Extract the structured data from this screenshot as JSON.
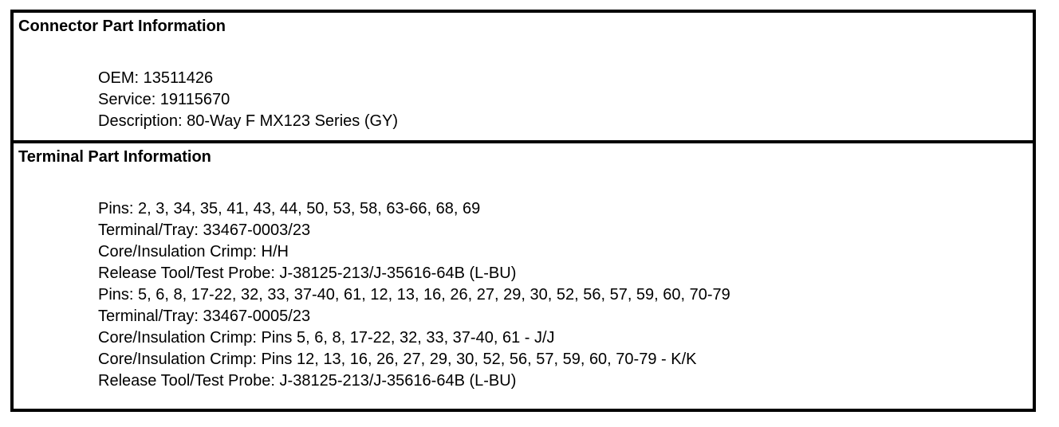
{
  "colors": {
    "background": "#ffffff",
    "border": "#000000",
    "text": "#000000"
  },
  "sections": [
    {
      "title": "Connector Part Information",
      "lines": [
        "OEM: 13511426",
        "Service: 19115670",
        "Description: 80-Way F MX123 Series (GY)"
      ]
    },
    {
      "title": "Terminal Part Information",
      "lines": [
        "Pins: 2, 3, 34, 35, 41, 43, 44, 50, 53, 58, 63-66, 68, 69",
        "Terminal/Tray: 33467-0003/23",
        "Core/Insulation Crimp: H/H",
        "Release Tool/Test Probe: J-38125-213/J-35616-64B (L-BU)",
        "Pins: 5, 6, 8, 17-22, 32, 33, 37-40, 61, 12, 13, 16, 26, 27, 29, 30, 52, 56, 57, 59, 60, 70-79",
        "Terminal/Tray: 33467-0005/23",
        "Core/Insulation Crimp: Pins 5, 6, 8, 17-22, 32, 33, 37-40, 61 - J/J",
        "Core/Insulation Crimp: Pins 12, 13, 16, 26, 27, 29, 30, 52, 56, 57, 59, 60, 70-79 - K/K",
        "Release Tool/Test Probe: J-38125-213/J-35616-64B (L-BU)"
      ]
    }
  ]
}
